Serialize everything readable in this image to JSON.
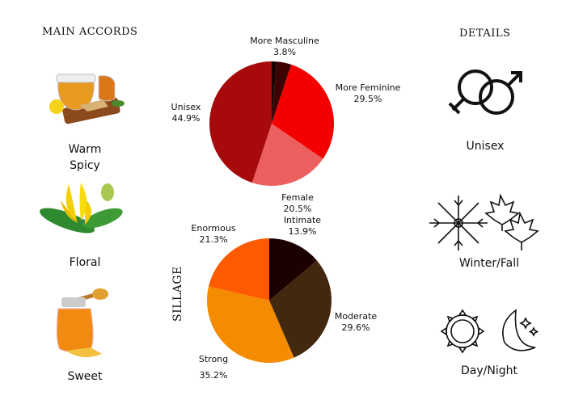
{
  "left": {
    "title": "MAIN ACCORDS",
    "accords": [
      {
        "label_line1": "Warm",
        "label_line2": "Spicy",
        "icon": "tea-ginger-icon"
      },
      {
        "label_line1": "Floral",
        "icon": "ylang-flower-icon"
      },
      {
        "label_line1": "Sweet",
        "icon": "honey-jar-icon"
      }
    ]
  },
  "right": {
    "title": "DETAILS",
    "items": [
      {
        "label": "Unisex",
        "icon": "gender-symbols-icon"
      },
      {
        "label": "Winter/Fall",
        "icon": "snowflake-maple-leaf-icon"
      },
      {
        "label": "Day/Night",
        "icon": "sun-moon-icon"
      }
    ]
  },
  "chart_data": [
    {
      "type": "pie",
      "title": "",
      "start": "top",
      "direction": "clockwise",
      "slices": [
        {
          "label": "",
          "value": 1.3,
          "display": "",
          "color": "#1a0202"
        },
        {
          "label": "More Masculine",
          "value": 3.8,
          "display": "3.8%",
          "color": "#3d0303"
        },
        {
          "label": "More Feminine",
          "value": 29.5,
          "display": "29.5%",
          "color": "#f50000"
        },
        {
          "label": "Female",
          "value": 20.5,
          "display": "20.5%",
          "color": "#eb5f5f"
        },
        {
          "label": "Unisex",
          "value": 44.9,
          "display": "44.9%",
          "color": "#a60a0a"
        }
      ]
    },
    {
      "type": "pie",
      "title": "SILLAGE",
      "start": "top",
      "direction": "clockwise",
      "slices": [
        {
          "label": "Intimate",
          "value": 13.9,
          "display": "13.9%",
          "color": "#1c0101"
        },
        {
          "label": "Moderate",
          "value": 29.6,
          "display": "29.6%",
          "color": "#432810"
        },
        {
          "label": "Strong",
          "value": 35.2,
          "display": "35.2%",
          "color": "#f58b00"
        },
        {
          "label": "Enormous",
          "value": 21.3,
          "display": "21.3%",
          "color": "#ff5a00"
        }
      ]
    }
  ]
}
